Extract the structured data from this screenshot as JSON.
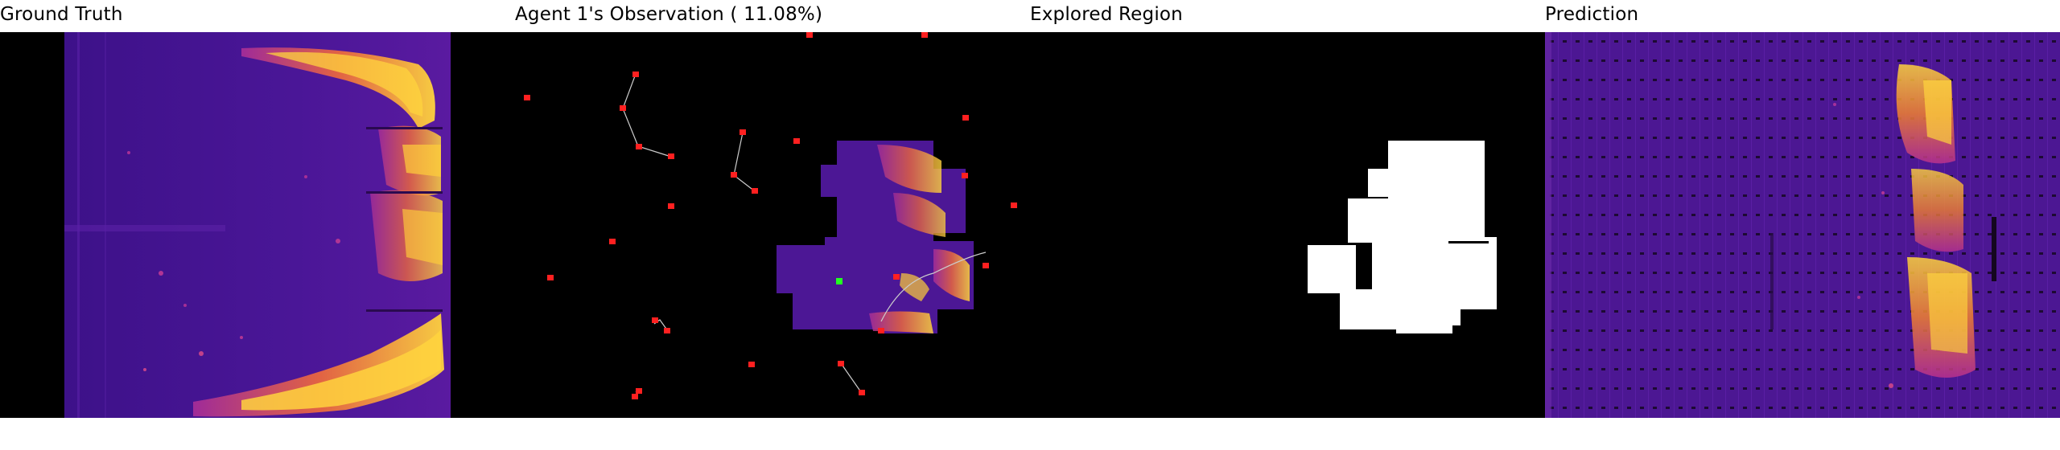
{
  "panels": {
    "ground_truth": {
      "title": "Ground Truth"
    },
    "observation": {
      "title": "Agent 1's Observation ( 11.08%)",
      "observed_fraction_percent": 11.08
    },
    "explored": {
      "title": "Explored Region"
    },
    "prediction": {
      "title": "Prediction"
    }
  },
  "colors": {
    "background": "#000000",
    "heat_low": "#4b1494",
    "heat_mid": "#c2308c",
    "heat_high": "#fdd23e",
    "agent_marker": "#ff2020",
    "current_agent_marker": "#22ff22",
    "explored": "#ffffff"
  }
}
